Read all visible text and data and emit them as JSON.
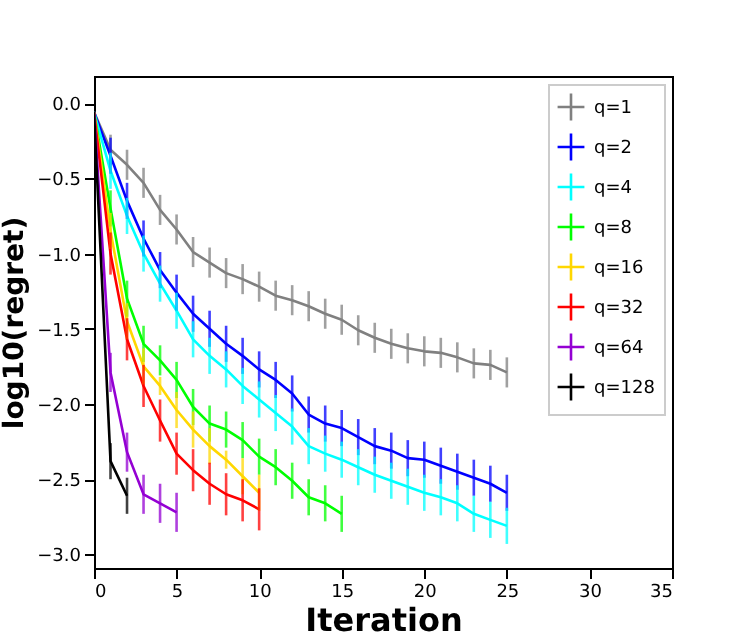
{
  "chart_data": {
    "type": "line",
    "xlabel": "Iteration",
    "ylabel": "log10(regret)",
    "xlim": [
      0,
      35
    ],
    "xticks": [
      0,
      5,
      10,
      15,
      20,
      25,
      30,
      35
    ],
    "ylim": [
      -3.09,
      0.18
    ],
    "yticks": [
      {
        "value": -3.0,
        "label": "−3.0"
      },
      {
        "value": -2.5,
        "label": "−2.5"
      },
      {
        "value": -2.0,
        "label": "−2.0"
      },
      {
        "value": -1.5,
        "label": "−1.5"
      },
      {
        "value": -1.0,
        "label": "−1.0"
      },
      {
        "value": -0.5,
        "label": "−0.5"
      },
      {
        "value": 0.0,
        "label": "0.0"
      }
    ],
    "grid": false,
    "legend": "top right",
    "line_style": "solid",
    "series": [
      {
        "name": "q=1",
        "color": "#808080",
        "x": [
          0,
          1,
          2,
          3,
          4,
          5,
          6,
          7,
          8,
          9,
          10,
          11,
          12,
          13,
          14,
          15,
          16,
          17,
          18,
          19,
          20,
          21,
          22,
          23,
          24,
          25
        ],
        "values": [
          -0.06,
          -0.31,
          -0.41,
          -0.53,
          -0.71,
          -0.84,
          -0.99,
          -1.06,
          -1.13,
          -1.17,
          -1.22,
          -1.28,
          -1.31,
          -1.35,
          -1.4,
          -1.44,
          -1.51,
          -1.56,
          -1.6,
          -1.63,
          -1.65,
          -1.66,
          -1.69,
          -1.73,
          -1.74,
          -1.79
        ],
        "errors": [
          null,
          0.1,
          0.1,
          0.1,
          0.1,
          0.1,
          0.1,
          0.1,
          0.1,
          0.1,
          0.1,
          0.1,
          0.1,
          0.1,
          0.1,
          0.1,
          0.1,
          0.1,
          0.1,
          0.1,
          0.1,
          0.1,
          0.1,
          0.1,
          0.1,
          0.1
        ]
      },
      {
        "name": "q=2",
        "color": "#0000ff",
        "x": [
          0,
          1,
          2,
          3,
          4,
          5,
          6,
          7,
          8,
          9,
          10,
          11,
          12,
          13,
          14,
          15,
          16,
          17,
          18,
          19,
          20,
          21,
          22,
          23,
          24,
          25
        ],
        "values": [
          -0.06,
          -0.35,
          -0.65,
          -0.9,
          -1.11,
          -1.26,
          -1.4,
          -1.5,
          -1.6,
          -1.68,
          -1.77,
          -1.84,
          -1.93,
          -2.07,
          -2.13,
          -2.16,
          -2.22,
          -2.28,
          -2.31,
          -2.36,
          -2.37,
          -2.41,
          -2.45,
          -2.49,
          -2.53,
          -2.59
        ],
        "errors": [
          null,
          0.12,
          0.12,
          0.12,
          0.12,
          0.12,
          0.12,
          0.12,
          0.12,
          0.12,
          0.12,
          0.12,
          0.12,
          0.12,
          0.12,
          0.12,
          0.12,
          0.12,
          0.12,
          0.12,
          0.12,
          0.12,
          0.12,
          0.12,
          0.12,
          0.12
        ]
      },
      {
        "name": "q=4",
        "color": "#00ffff",
        "x": [
          0,
          1,
          2,
          3,
          4,
          5,
          6,
          7,
          8,
          9,
          10,
          11,
          12,
          13,
          14,
          15,
          16,
          17,
          18,
          19,
          20,
          21,
          22,
          23,
          24,
          25
        ],
        "values": [
          -0.06,
          -0.45,
          -0.75,
          -1.0,
          -1.2,
          -1.38,
          -1.57,
          -1.68,
          -1.77,
          -1.88,
          -1.97,
          -2.06,
          -2.15,
          -2.28,
          -2.33,
          -2.37,
          -2.42,
          -2.47,
          -2.51,
          -2.55,
          -2.59,
          -2.62,
          -2.66,
          -2.73,
          -2.77,
          -2.81
        ],
        "errors": [
          null,
          0.12,
          0.12,
          0.12,
          0.12,
          0.12,
          0.12,
          0.12,
          0.12,
          0.12,
          0.12,
          0.12,
          0.12,
          0.12,
          0.12,
          0.12,
          0.12,
          0.12,
          0.12,
          0.12,
          0.12,
          0.12,
          0.12,
          0.12,
          0.12,
          0.12
        ]
      },
      {
        "name": "q=8",
        "color": "#00ff00",
        "x": [
          0,
          1,
          2,
          3,
          4,
          5,
          6,
          7,
          8,
          9,
          10,
          11,
          12,
          13,
          14,
          15
        ],
        "values": [
          -0.06,
          -0.7,
          -1.3,
          -1.6,
          -1.71,
          -1.84,
          -2.02,
          -2.13,
          -2.17,
          -2.24,
          -2.35,
          -2.42,
          -2.51,
          -2.62,
          -2.66,
          -2.73
        ],
        "errors": [
          null,
          0.12,
          0.12,
          0.12,
          0.1,
          0.12,
          0.12,
          0.12,
          0.12,
          0.12,
          0.12,
          0.12,
          0.12,
          0.12,
          0.12,
          0.12
        ]
      },
      {
        "name": "q=16",
        "color": "#ffd700",
        "x": [
          0,
          1,
          2,
          3,
          4,
          5,
          6,
          7,
          8,
          9,
          10
        ],
        "values": [
          -0.06,
          -0.85,
          -1.45,
          -1.75,
          -1.88,
          -2.04,
          -2.17,
          -2.28,
          -2.37,
          -2.48,
          -2.59
        ],
        "errors": [
          null,
          0.12,
          0.12,
          0.12,
          0.06,
          0.12,
          0.12,
          0.12,
          0.06,
          0.12,
          0.12
        ]
      },
      {
        "name": "q=32",
        "color": "#ff0000",
        "x": [
          0,
          1,
          2,
          3,
          4,
          5,
          6,
          7,
          8,
          9,
          10
        ],
        "values": [
          -0.06,
          -1.0,
          -1.57,
          -1.88,
          -2.11,
          -2.33,
          -2.44,
          -2.53,
          -2.6,
          -2.64,
          -2.7
        ],
        "errors": [
          null,
          0.14,
          0.14,
          0.14,
          0.14,
          0.14,
          0.14,
          0.14,
          0.14,
          0.14,
          0.14
        ]
      },
      {
        "name": "q=64",
        "color": "#9400d3",
        "x": [
          0,
          1,
          2,
          3,
          4,
          5
        ],
        "values": [
          -0.06,
          -1.79,
          -2.32,
          -2.6,
          -2.66,
          -2.72
        ],
        "errors": [
          null,
          0.13,
          0.13,
          0.13,
          0.13,
          0.13
        ]
      },
      {
        "name": "q=128",
        "color": "#000000",
        "x": [
          0,
          1,
          2
        ],
        "values": [
          -0.06,
          -2.38,
          -2.61
        ],
        "errors": [
          null,
          0.12,
          0.12
        ]
      }
    ]
  }
}
